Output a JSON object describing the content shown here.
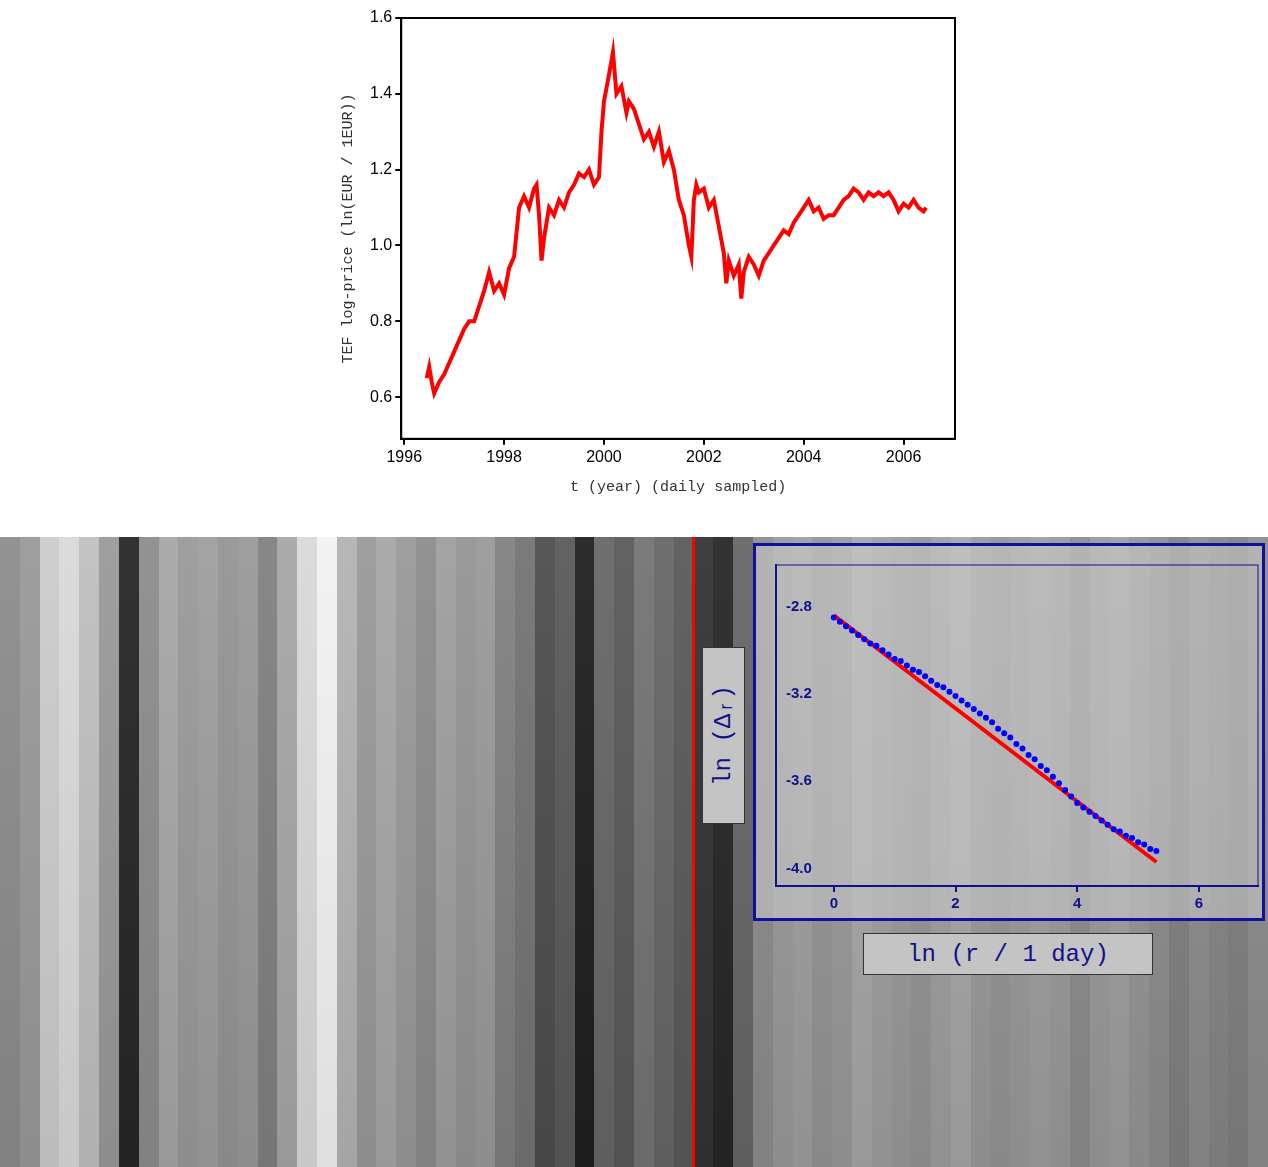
{
  "chart_data": [
    {
      "type": "line",
      "x_label": "t (year) (daily sampled)",
      "y_label": "TEF log-price (ln(EUR / 1EUR))",
      "x": [
        1996.45,
        1996.5,
        1996.55,
        1996.6,
        1996.7,
        1996.8,
        1996.9,
        1997.0,
        1997.1,
        1997.2,
        1997.3,
        1997.4,
        1997.5,
        1997.6,
        1997.7,
        1997.8,
        1997.9,
        1998.0,
        1998.1,
        1998.2,
        1998.3,
        1998.4,
        1998.5,
        1998.6,
        1998.65,
        1998.7,
        1998.75,
        1998.8,
        1998.9,
        1999.0,
        1999.1,
        1999.2,
        1999.3,
        1999.4,
        1999.5,
        1999.6,
        1999.7,
        1999.8,
        1999.9,
        1999.95,
        2000.0,
        2000.1,
        2000.18,
        2000.25,
        2000.35,
        2000.45,
        2000.5,
        2000.6,
        2000.7,
        2000.8,
        2000.9,
        2001.0,
        2001.1,
        2001.2,
        2001.3,
        2001.4,
        2001.5,
        2001.6,
        2001.7,
        2001.75,
        2001.8,
        2001.85,
        2001.9,
        2002.0,
        2002.1,
        2002.2,
        2002.3,
        2002.4,
        2002.45,
        2002.5,
        2002.6,
        2002.7,
        2002.75,
        2002.8,
        2002.9,
        2003.0,
        2003.1,
        2003.2,
        2003.3,
        2003.4,
        2003.5,
        2003.6,
        2003.7,
        2003.8,
        2003.9,
        2004.0,
        2004.1,
        2004.2,
        2004.3,
        2004.4,
        2004.5,
        2004.6,
        2004.7,
        2004.8,
        2004.9,
        2005.0,
        2005.1,
        2005.2,
        2005.3,
        2005.4,
        2005.5,
        2005.6,
        2005.7,
        2005.8,
        2005.9,
        2006.0,
        2006.1,
        2006.2,
        2006.3,
        2006.4,
        2006.45
      ],
      "series": [
        {
          "color": "#ff0000",
          "values": [
            0.65,
            0.68,
            0.64,
            0.61,
            0.64,
            0.66,
            0.69,
            0.72,
            0.75,
            0.78,
            0.8,
            0.8,
            0.84,
            0.88,
            0.93,
            0.88,
            0.9,
            0.87,
            0.94,
            0.97,
            1.1,
            1.13,
            1.1,
            1.15,
            1.16,
            1.08,
            0.96,
            1.02,
            1.1,
            1.08,
            1.12,
            1.1,
            1.14,
            1.16,
            1.19,
            1.18,
            1.2,
            1.16,
            1.18,
            1.3,
            1.38,
            1.45,
            1.51,
            1.4,
            1.42,
            1.35,
            1.38,
            1.36,
            1.32,
            1.28,
            1.3,
            1.26,
            1.3,
            1.22,
            1.25,
            1.2,
            1.12,
            1.08,
            1.0,
            0.97,
            1.12,
            1.16,
            1.14,
            1.15,
            1.1,
            1.12,
            1.05,
            0.98,
            0.9,
            0.96,
            0.92,
            0.95,
            0.86,
            0.93,
            0.97,
            0.95,
            0.92,
            0.96,
            0.98,
            1.0,
            1.02,
            1.04,
            1.03,
            1.06,
            1.08,
            1.1,
            1.12,
            1.09,
            1.1,
            1.07,
            1.08,
            1.08,
            1.1,
            1.12,
            1.13,
            1.15,
            1.14,
            1.12,
            1.14,
            1.13,
            1.14,
            1.13,
            1.14,
            1.12,
            1.09,
            1.11,
            1.1,
            1.12,
            1.1,
            1.09,
            1.1
          ]
        }
      ],
      "xlim": [
        1995.94,
        2007.03
      ],
      "xticks": [
        1996,
        1998,
        2000,
        2002,
        2004,
        2006
      ],
      "ylim": [
        0.49,
        1.6
      ],
      "yticks": [
        0.6,
        0.8,
        {
          "value": 1,
          "label": "1.0"
        },
        1.2,
        1.4,
        1.6
      ],
      "grid": false
    },
    {
      "type": "scatter",
      "x_label": "ln (r / 1 day)",
      "y_label": "ln (Δᵣ)",
      "series": [
        {
          "type": "scatter",
          "marker": "circle",
          "color": "#0000ff",
          "x": [
            0.0,
            0.1,
            0.2,
            0.3,
            0.4,
            0.5,
            0.6,
            0.7,
            0.8,
            0.9,
            1.0,
            1.1,
            1.2,
            1.3,
            1.4,
            1.5,
            1.6,
            1.7,
            1.8,
            1.9,
            2.0,
            2.1,
            2.2,
            2.3,
            2.4,
            2.5,
            2.6,
            2.7,
            2.8,
            2.9,
            3.0,
            3.1,
            3.2,
            3.3,
            3.4,
            3.5,
            3.6,
            3.7,
            3.8,
            3.9,
            4.0,
            4.1,
            4.2,
            4.3,
            4.4,
            4.5,
            4.6,
            4.7,
            4.8,
            4.9,
            5.0,
            5.1,
            5.2,
            5.3
          ],
          "values": [
            -2.85,
            -2.87,
            -2.89,
            -2.91,
            -2.93,
            -2.95,
            -2.97,
            -2.98,
            -3.0,
            -3.02,
            -3.04,
            -3.05,
            -3.07,
            -3.09,
            -3.1,
            -3.12,
            -3.14,
            -3.16,
            -3.17,
            -3.19,
            -3.21,
            -3.23,
            -3.25,
            -3.27,
            -3.29,
            -3.31,
            -3.33,
            -3.36,
            -3.38,
            -3.4,
            -3.43,
            -3.45,
            -3.48,
            -3.5,
            -3.53,
            -3.55,
            -3.58,
            -3.61,
            -3.64,
            -3.67,
            -3.7,
            -3.72,
            -3.74,
            -3.76,
            -3.78,
            -3.8,
            -3.82,
            -3.83,
            -3.85,
            -3.86,
            -3.88,
            -3.89,
            -3.91,
            -3.92
          ]
        },
        {
          "type": "line",
          "line_style": "solid",
          "color": "#ff0000",
          "x": [
            0,
            5.3
          ],
          "values": [
            -2.84,
            -3.97
          ]
        }
      ],
      "xlim": [
        -0.95,
        6.97
      ],
      "xticks": [
        0,
        2,
        4,
        6
      ],
      "ylim": [
        -4.08,
        -2.61
      ],
      "yticks": [
        -2.8,
        -3.2,
        -3.6,
        {
          "value": -4,
          "label": "-4.0"
        }
      ],
      "grid": false
    }
  ],
  "background": {
    "values": [
      0.55,
      0.6,
      0.8,
      0.85,
      0.75,
      0.6,
      0.15,
      0.55,
      0.65,
      0.6,
      0.62,
      0.58,
      0.6,
      0.5,
      0.65,
      0.85,
      0.95,
      0.7,
      0.6,
      0.65,
      0.6,
      0.55,
      0.62,
      0.58,
      0.6,
      0.5,
      0.45,
      0.3,
      0.35,
      0.12,
      0.4,
      0.35,
      0.45,
      0.4,
      0.35,
      0.2,
      0.15,
      0.4,
      0.55,
      0.6,
      0.62,
      0.58,
      0.6,
      0.65,
      0.62,
      0.6,
      0.58,
      0.62,
      0.65,
      0.6,
      0.58,
      0.6,
      0.62,
      0.6,
      0.55,
      0.6,
      0.62,
      0.58,
      0.55,
      0.5,
      0.55,
      0.52,
      0.5,
      0.55
    ],
    "highlight": 35,
    "color": "#ff0000"
  }
}
